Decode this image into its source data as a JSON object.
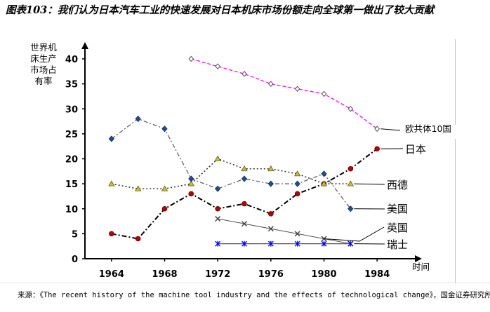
{
  "figure": {
    "title": "图表103：我们认为日本汽车工业的快速发展对日本机床市场份额走向全球第一做出了较大贡献",
    "source": "来源：《The recent history of the machine tool industry and the effects of technological change》，国金证券研究所"
  },
  "chart_data": {
    "type": "line",
    "ylabel_lines": [
      "世界机",
      "床生产",
      "市场占",
      "有率"
    ],
    "xlabel": "时间",
    "xlim": [
      1962,
      1986
    ],
    "ylim": [
      0,
      40
    ],
    "x_ticks": [
      1964,
      1968,
      1972,
      1976,
      1980,
      1984
    ],
    "y_ticks": [
      0,
      5,
      10,
      15,
      20,
      25,
      30,
      35,
      40
    ],
    "grid": false,
    "series": [
      {
        "name": "欧共体10国",
        "color": "#ff00ff",
        "marker": "diamond-open",
        "x": [
          1970,
          1972,
          1974,
          1976,
          1978,
          1980,
          1982,
          1984
        ],
        "y": [
          40,
          38.5,
          37,
          35,
          34,
          33,
          30,
          26
        ]
      },
      {
        "name": "日本",
        "color": "#c00000",
        "marker": "circle",
        "x": [
          1964,
          1966,
          1968,
          1970,
          1972,
          1974,
          1976,
          1978,
          1980,
          1982,
          1984
        ],
        "y": [
          5,
          4,
          10,
          13,
          10,
          11,
          9,
          13,
          15,
          18,
          22
        ]
      },
      {
        "name": "西德",
        "color": "#d4c300",
        "marker": "triangle",
        "x": [
          1964,
          1966,
          1968,
          1970,
          1972,
          1974,
          1976,
          1978,
          1980,
          1982
        ],
        "y": [
          15,
          14,
          14,
          15,
          20,
          18,
          18,
          17,
          15,
          15
        ]
      },
      {
        "name": "美国",
        "color": "#1f4e99",
        "marker": "diamond",
        "x": [
          1964,
          1966,
          1968,
          1970,
          1972,
          1974,
          1976,
          1978,
          1980,
          1982
        ],
        "y": [
          24,
          28,
          26,
          16,
          14,
          16,
          15,
          15,
          17,
          10
        ]
      },
      {
        "name": "英国",
        "color": "#404040",
        "marker": "cross",
        "x": [
          1972,
          1974,
          1976,
          1978,
          1980,
          1982
        ],
        "y": [
          8,
          7,
          6,
          5,
          4,
          3
        ]
      },
      {
        "name": "瑞士",
        "color": "#0000ff",
        "marker": "star",
        "x": [
          1972,
          1974,
          1976,
          1978,
          1980,
          1982
        ],
        "y": [
          3,
          3,
          3,
          3,
          3,
          3
        ]
      }
    ]
  }
}
